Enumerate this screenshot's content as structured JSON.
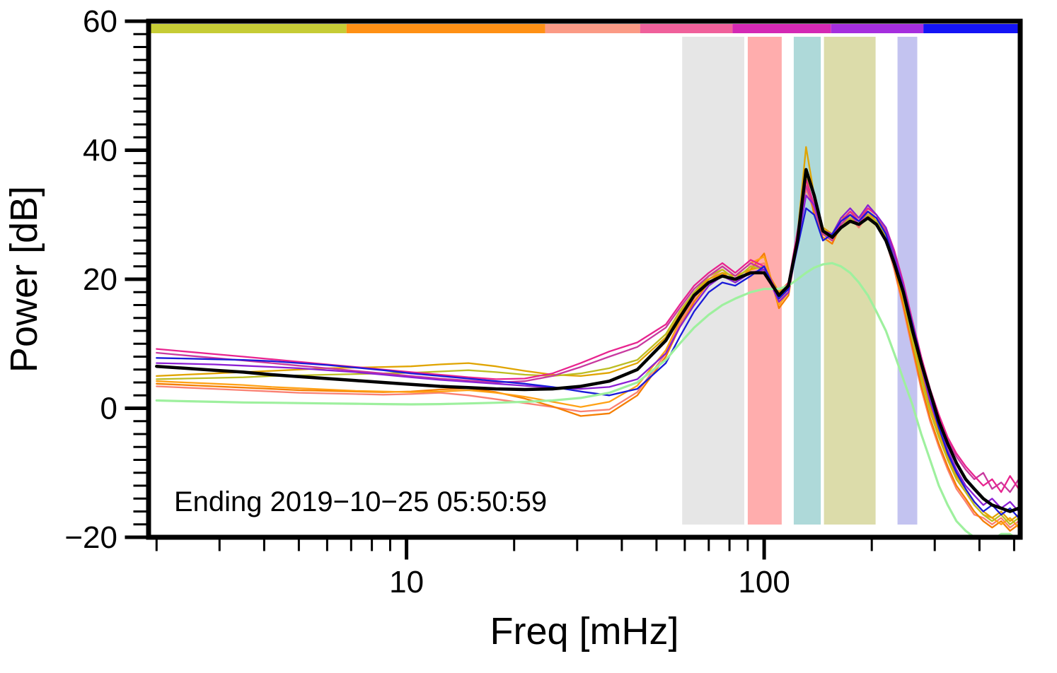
{
  "chart_data": {
    "type": "line",
    "title": "",
    "xlabel": "Freq [mHz]",
    "ylabel": "Power [dB]",
    "annotation": "Ending 2019−10−25 05:50:59",
    "x_scale": "log",
    "xlim": [
      1.9,
      520
    ],
    "ylim": [
      -20,
      60
    ],
    "grid": false,
    "legend": "none",
    "x_major_ticks": [
      10,
      100
    ],
    "x_major_tick_labels": [
      "10",
      "100"
    ],
    "x_minor_ticks": [
      2,
      3,
      4,
      5,
      6,
      7,
      8,
      9,
      20,
      30,
      40,
      50,
      60,
      70,
      80,
      90,
      200,
      300,
      400,
      500
    ],
    "y_major_ticks": [
      60,
      40,
      20,
      0,
      -20
    ],
    "y_major_tick_labels": [
      "60",
      "40",
      "20",
      "0",
      "−20"
    ],
    "y_minor_step": 2,
    "bands": [
      {
        "name": "gray",
        "from": 59,
        "to": 88,
        "color": "#e6e6e6"
      },
      {
        "name": "pink",
        "from": 90,
        "to": 112,
        "color": "#ffadad"
      },
      {
        "name": "teal",
        "from": 121,
        "to": 144,
        "color": "#aed9d9"
      },
      {
        "name": "khaki",
        "from": 147,
        "to": 205,
        "color": "#dcdcaa"
      },
      {
        "name": "lavender",
        "from": 236,
        "to": 268,
        "color": "#c3c3f0"
      }
    ],
    "colorbar_segments": [
      {
        "color": "#c6cc35",
        "from": 0.0,
        "to": 0.227
      },
      {
        "color": "#ff9015",
        "from": 0.227,
        "to": 0.455
      },
      {
        "color": "#fb9a85",
        "from": 0.455,
        "to": 0.564
      },
      {
        "color": "#f0609b",
        "from": 0.564,
        "to": 0.67
      },
      {
        "color": "#d428b4",
        "from": 0.67,
        "to": 0.783
      },
      {
        "color": "#a52ede",
        "from": 0.783,
        "to": 0.889
      },
      {
        "color": "#1414f5",
        "from": 0.889,
        "to": 1.0
      }
    ],
    "x": [
      2.0,
      2.4,
      2.9,
      3.5,
      4.2,
      5.0,
      6.0,
      7.2,
      8.6,
      10.3,
      12.4,
      14.9,
      17.8,
      21.4,
      25.6,
      30.7,
      36.9,
      44.2,
      53.1,
      58,
      63.7,
      70,
      76.4,
      83,
      91.7,
      100,
      110,
      117,
      124,
      131,
      138,
      146,
      155,
      164,
      174,
      184,
      195,
      206,
      219,
      231,
      245,
      260,
      275,
      291,
      308,
      326,
      345,
      366,
      387,
      410,
      434,
      460,
      487,
      515
    ],
    "series": [
      {
        "name": "salmon",
        "color": "#fa8072",
        "width": 2.3,
        "values": [
          3.4,
          3.2,
          3.0,
          2.8,
          2.6,
          2.4,
          2.3,
          2.2,
          2.1,
          2.2,
          2.4,
          2.0,
          1.4,
          0.8,
          0.2,
          -0.5,
          -0.2,
          2.5,
          8.5,
          13.0,
          17.0,
          20.0,
          21.5,
          20.0,
          22.0,
          22.5,
          16.5,
          18.5,
          26.5,
          34.0,
          30.5,
          27.0,
          26.0,
          28.0,
          29.5,
          28.0,
          30.0,
          28.5,
          26.0,
          21.5,
          15.5,
          9.0,
          3.0,
          -2.0,
          -6.0,
          -9.5,
          -12.5,
          -14.5,
          -16.5,
          -17.0,
          -18.0,
          -17.0,
          -18.5,
          -17.5
        ]
      },
      {
        "name": "orange-2",
        "color": "#f57e00",
        "width": 2.3,
        "values": [
          3.8,
          3.6,
          3.4,
          3.2,
          3.0,
          2.8,
          2.7,
          2.6,
          2.5,
          2.6,
          2.9,
          3.1,
          2.5,
          1.5,
          0.3,
          -1.2,
          -0.8,
          2.0,
          8.0,
          12.5,
          16.5,
          19.5,
          21.0,
          19.5,
          21.5,
          24.0,
          15.5,
          17.5,
          26.0,
          36.0,
          30.0,
          26.5,
          25.5,
          28.5,
          30.0,
          28.5,
          30.5,
          29.0,
          26.5,
          22.0,
          16.0,
          9.5,
          3.5,
          -1.5,
          -5.5,
          -9.0,
          -12.0,
          -14.0,
          -16.0,
          -17.5,
          -18.5,
          -17.5,
          -19.0,
          -18.0
        ]
      },
      {
        "name": "orange-1",
        "color": "#ffa115",
        "width": 2.3,
        "values": [
          4.2,
          4.0,
          3.8,
          3.6,
          3.3,
          3.1,
          2.9,
          2.7,
          2.6,
          2.5,
          2.6,
          2.8,
          2.4,
          1.8,
          1.0,
          0.2,
          1.0,
          3.5,
          9.0,
          13.5,
          17.5,
          20.5,
          22.0,
          20.5,
          22.5,
          23.5,
          16.0,
          18.0,
          27.0,
          35.0,
          31.0,
          27.0,
          26.0,
          29.0,
          30.5,
          29.5,
          31.0,
          30.0,
          27.5,
          23.5,
          18.0,
          11.0,
          5.0,
          0.0,
          -4.0,
          -8.0,
          -11.0,
          -13.0,
          -15.0,
          -16.5,
          -17.0,
          -18.0,
          -17.0,
          -18.5
        ]
      },
      {
        "name": "gold",
        "color": "#e0a400",
        "width": 2.3,
        "values": [
          5.0,
          5.2,
          5.4,
          5.6,
          5.8,
          6.0,
          6.2,
          6.3,
          6.4,
          6.5,
          6.8,
          7.0,
          6.5,
          5.8,
          5.2,
          5.0,
          5.5,
          7.0,
          11.0,
          14.5,
          18.0,
          20.0,
          21.0,
          20.5,
          21.5,
          22.0,
          18.0,
          19.5,
          27.0,
          40.5,
          33.0,
          28.0,
          27.0,
          29.5,
          30.0,
          29.0,
          30.5,
          29.5,
          27.0,
          23.0,
          17.5,
          11.5,
          5.5,
          0.5,
          -3.5,
          -7.5,
          -10.5,
          -12.5,
          -14.5,
          -16.0,
          -17.0,
          -16.0,
          -17.5,
          -16.5
        ]
      },
      {
        "name": "olive",
        "color": "#bcbd22",
        "width": 2.3,
        "values": [
          4.5,
          4.6,
          4.7,
          4.8,
          5.0,
          5.1,
          5.2,
          5.3,
          5.4,
          5.5,
          5.7,
          5.9,
          5.6,
          5.2,
          5.0,
          5.4,
          6.2,
          7.5,
          11.5,
          15.0,
          18.0,
          20.5,
          21.5,
          20.0,
          22.0,
          21.5,
          17.0,
          19.0,
          26.5,
          36.0,
          31.0,
          27.0,
          26.5,
          28.5,
          29.5,
          28.5,
          30.0,
          29.0,
          26.5,
          22.5,
          17.0,
          10.5,
          4.5,
          -0.5,
          -4.5,
          -8.0,
          -11.0,
          -13.0,
          -15.0,
          -16.5,
          -17.5,
          -16.5,
          -18.0,
          -17.0
        ]
      },
      {
        "name": "magenta-2",
        "color": "#c8399f",
        "width": 2.3,
        "values": [
          8.6,
          8.2,
          7.8,
          7.4,
          7.0,
          6.6,
          6.2,
          5.8,
          5.4,
          5.0,
          4.6,
          4.3,
          4.0,
          4.2,
          5.0,
          6.4,
          8.0,
          9.5,
          12.5,
          15.5,
          18.5,
          20.5,
          22.0,
          20.5,
          22.5,
          21.5,
          17.0,
          19.0,
          27.0,
          34.5,
          31.0,
          27.0,
          26.0,
          28.5,
          30.0,
          28.5,
          30.5,
          29.5,
          27.5,
          24.0,
          19.0,
          13.0,
          7.5,
          2.5,
          -1.5,
          -5.0,
          -7.5,
          -9.5,
          -11.0,
          -10.0,
          -12.5,
          -11.5,
          -13.0,
          -11.0
        ]
      },
      {
        "name": "magenta-1",
        "color": "#e8248f",
        "width": 2.3,
        "values": [
          9.2,
          8.8,
          8.4,
          8.0,
          7.6,
          7.2,
          6.8,
          6.4,
          6.0,
          5.6,
          5.2,
          4.8,
          4.5,
          4.6,
          5.4,
          7.0,
          8.8,
          10.2,
          13.0,
          16.0,
          19.0,
          21.0,
          22.5,
          21.0,
          23.0,
          22.0,
          17.5,
          19.5,
          27.5,
          35.5,
          31.5,
          27.5,
          26.5,
          29.0,
          30.5,
          29.0,
          31.0,
          30.0,
          28.0,
          24.5,
          19.5,
          13.5,
          8.0,
          3.0,
          -1.0,
          -4.5,
          -7.0,
          -9.0,
          -10.5,
          -12.0,
          -11.0,
          -13.0,
          -10.5,
          -12.5
        ]
      },
      {
        "name": "purple",
        "color": "#8a1fd4",
        "width": 2.3,
        "values": [
          7.0,
          6.9,
          6.8,
          6.6,
          6.4,
          6.2,
          5.9,
          5.6,
          5.2,
          4.8,
          4.4,
          4.1,
          3.8,
          3.5,
          3.2,
          3.0,
          3.3,
          4.5,
          8.5,
          12.5,
          16.0,
          19.0,
          20.5,
          19.5,
          21.0,
          21.5,
          16.5,
          18.0,
          25.5,
          33.0,
          31.5,
          27.5,
          27.0,
          29.5,
          31.0,
          29.5,
          31.5,
          30.0,
          28.0,
          24.0,
          19.0,
          12.5,
          6.5,
          1.0,
          -3.0,
          -6.5,
          -9.5,
          -12.0,
          -13.5,
          -15.0,
          -14.0,
          -15.5,
          -14.5,
          -16.0
        ]
      },
      {
        "name": "blue",
        "color": "#1a1ad9",
        "width": 2.3,
        "values": [
          7.8,
          7.7,
          7.6,
          7.5,
          7.3,
          7.0,
          6.7,
          6.3,
          5.9,
          5.4,
          5.0,
          4.6,
          4.2,
          3.8,
          3.3,
          2.6,
          2.0,
          3.0,
          7.0,
          11.0,
          15.0,
          18.0,
          19.5,
          19.0,
          20.5,
          22.0,
          17.0,
          18.5,
          25.0,
          31.0,
          30.0,
          26.0,
          27.0,
          29.0,
          30.0,
          29.0,
          30.5,
          29.5,
          27.0,
          23.0,
          18.5,
          13.0,
          7.5,
          2.0,
          -3.0,
          -7.0,
          -10.0,
          -12.5,
          -14.5,
          -16.0,
          -15.0,
          -16.5,
          -15.5,
          -17.0
        ]
      },
      {
        "name": "quiet-reference",
        "color": "#9ef09e",
        "width": 3.2,
        "values": [
          1.2,
          1.1,
          1.0,
          0.9,
          0.85,
          0.8,
          0.75,
          0.7,
          0.65,
          0.6,
          0.65,
          0.75,
          0.85,
          1.0,
          1.2,
          1.6,
          2.4,
          4.0,
          7.5,
          10.0,
          12.5,
          14.5,
          16.0,
          17.0,
          18.0,
          18.5,
          18.5,
          19.0,
          20.0,
          21.0,
          21.8,
          22.3,
          22.5,
          22.0,
          21.0,
          19.5,
          17.5,
          15.0,
          12.0,
          8.5,
          4.5,
          0.5,
          -4.0,
          -8.0,
          -12.0,
          -15.0,
          -17.5,
          -19.0,
          -20.0,
          -20.5,
          -20.5,
          -19.5,
          -19.5,
          -20.5
        ]
      },
      {
        "name": "mean",
        "color": "#000000",
        "width": 4.5,
        "values": [
          6.5,
          6.2,
          5.9,
          5.6,
          5.2,
          4.9,
          4.6,
          4.3,
          4.0,
          3.7,
          3.4,
          3.2,
          3.0,
          2.9,
          3.0,
          3.4,
          4.2,
          6.0,
          10.5,
          14.0,
          17.5,
          19.5,
          20.5,
          20.0,
          21.0,
          21.0,
          17.5,
          19.0,
          26.0,
          37.0,
          33.0,
          27.5,
          26.5,
          28.0,
          29.0,
          28.5,
          29.5,
          28.5,
          26.0,
          22.5,
          18.0,
          12.0,
          7.0,
          2.5,
          -2.0,
          -5.5,
          -8.5,
          -11.0,
          -12.5,
          -14.0,
          -15.0,
          -15.5,
          -16.0,
          -15.5
        ]
      }
    ]
  }
}
